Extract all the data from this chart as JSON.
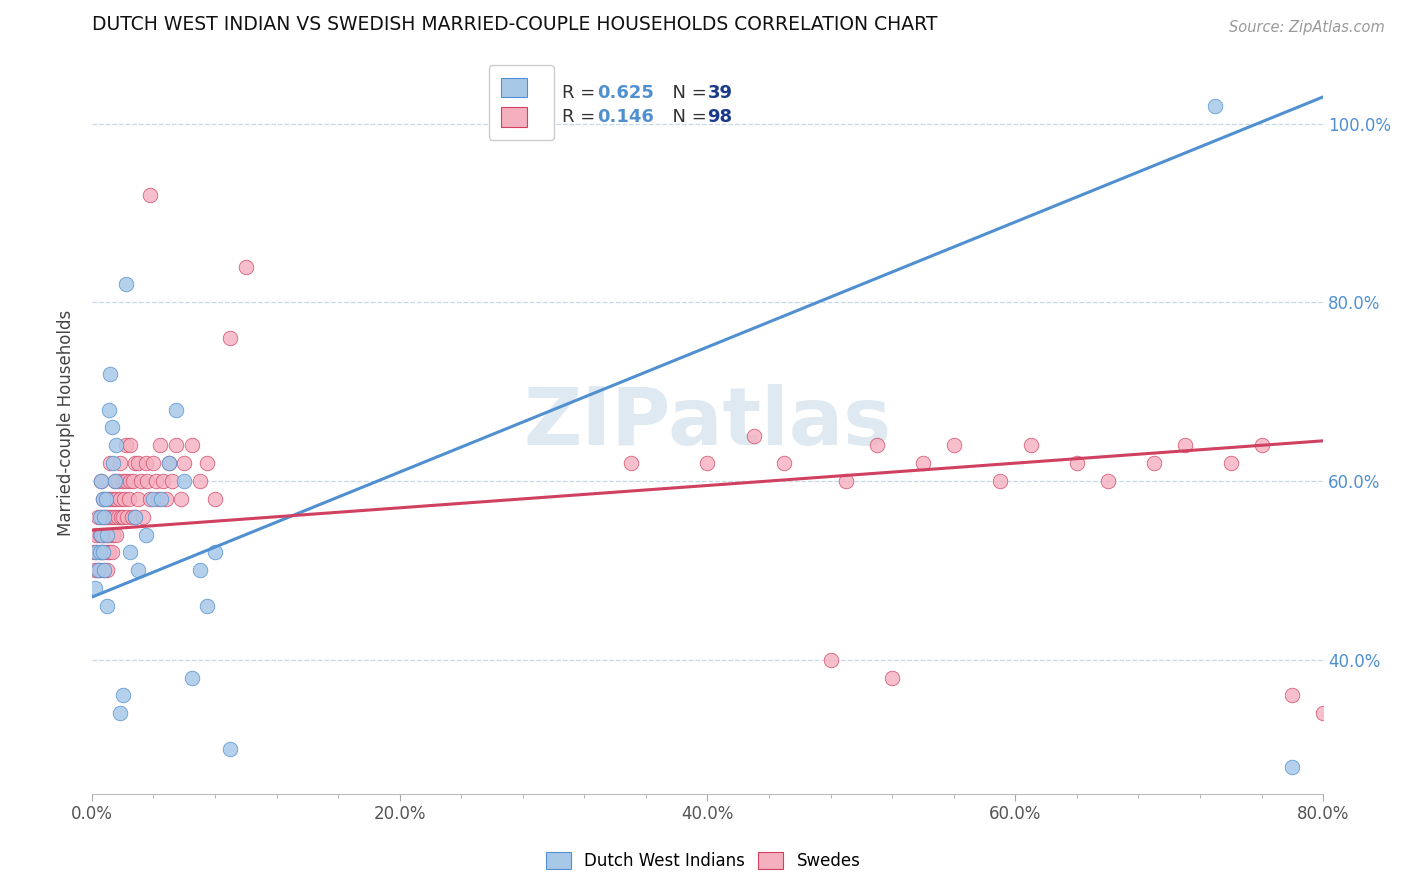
{
  "title": "DUTCH WEST INDIAN VS SWEDISH MARRIED-COUPLE HOUSEHOLDS CORRELATION CHART",
  "source": "Source: ZipAtlas.com",
  "ylabel": "Married-couple Households",
  "xmin": 0.0,
  "xmax": 0.8,
  "ymin": 0.25,
  "ymax": 1.08,
  "xtick_labels": [
    "0.0%",
    "",
    "",
    "",
    "",
    "20.0%",
    "",
    "",
    "",
    "",
    "40.0%",
    "",
    "",
    "",
    "",
    "60.0%",
    "",
    "",
    "",
    "",
    "80.0%"
  ],
  "xtick_vals": [
    0.0,
    0.04,
    0.08,
    0.12,
    0.16,
    0.2,
    0.24,
    0.28,
    0.32,
    0.36,
    0.4,
    0.44,
    0.48,
    0.52,
    0.56,
    0.6,
    0.64,
    0.68,
    0.72,
    0.76,
    0.8
  ],
  "ytick_labels": [
    "40.0%",
    "60.0%",
    "80.0%",
    "100.0%"
  ],
  "ytick_vals": [
    0.4,
    0.6,
    0.8,
    1.0
  ],
  "blue_R": 0.625,
  "blue_N": 39,
  "pink_R": 0.146,
  "pink_N": 98,
  "blue_color": "#a8c8e8",
  "pink_color": "#f5b0c0",
  "blue_line_color": "#5090d0",
  "pink_line_color": "#d04060",
  "watermark": "ZIPatlas",
  "blue_scatter_x": [
    0.002,
    0.003,
    0.004,
    0.005,
    0.005,
    0.006,
    0.006,
    0.007,
    0.007,
    0.008,
    0.008,
    0.009,
    0.01,
    0.01,
    0.011,
    0.012,
    0.013,
    0.014,
    0.015,
    0.016,
    0.018,
    0.02,
    0.022,
    0.025,
    0.028,
    0.03,
    0.035,
    0.04,
    0.045,
    0.05,
    0.055,
    0.06,
    0.065,
    0.07,
    0.075,
    0.08,
    0.09,
    0.73,
    0.78
  ],
  "blue_scatter_y": [
    0.48,
    0.52,
    0.5,
    0.56,
    0.52,
    0.54,
    0.6,
    0.58,
    0.52,
    0.56,
    0.5,
    0.58,
    0.54,
    0.46,
    0.68,
    0.72,
    0.66,
    0.62,
    0.6,
    0.64,
    0.34,
    0.36,
    0.82,
    0.52,
    0.56,
    0.5,
    0.54,
    0.58,
    0.58,
    0.62,
    0.68,
    0.6,
    0.38,
    0.5,
    0.46,
    0.52,
    0.3,
    1.02,
    0.28
  ],
  "pink_scatter_x": [
    0.001,
    0.002,
    0.003,
    0.003,
    0.004,
    0.004,
    0.005,
    0.005,
    0.006,
    0.006,
    0.006,
    0.007,
    0.007,
    0.007,
    0.008,
    0.008,
    0.008,
    0.009,
    0.009,
    0.01,
    0.01,
    0.01,
    0.011,
    0.011,
    0.012,
    0.012,
    0.012,
    0.013,
    0.013,
    0.014,
    0.014,
    0.015,
    0.015,
    0.016,
    0.016,
    0.017,
    0.017,
    0.018,
    0.018,
    0.019,
    0.02,
    0.02,
    0.021,
    0.022,
    0.022,
    0.023,
    0.024,
    0.025,
    0.025,
    0.026,
    0.027,
    0.028,
    0.028,
    0.03,
    0.03,
    0.032,
    0.033,
    0.035,
    0.036,
    0.038,
    0.04,
    0.042,
    0.043,
    0.044,
    0.046,
    0.048,
    0.05,
    0.052,
    0.055,
    0.058,
    0.06,
    0.065,
    0.07,
    0.075,
    0.08,
    0.09,
    0.1,
    0.35,
    0.4,
    0.43,
    0.45,
    0.49,
    0.51,
    0.54,
    0.56,
    0.59,
    0.61,
    0.64,
    0.66,
    0.69,
    0.71,
    0.74,
    0.76,
    0.78,
    0.8,
    0.48,
    0.52,
    0.038
  ],
  "pink_scatter_y": [
    0.52,
    0.5,
    0.52,
    0.54,
    0.56,
    0.5,
    0.54,
    0.5,
    0.52,
    0.56,
    0.6,
    0.52,
    0.54,
    0.58,
    0.54,
    0.5,
    0.56,
    0.52,
    0.56,
    0.54,
    0.5,
    0.58,
    0.56,
    0.52,
    0.54,
    0.58,
    0.62,
    0.56,
    0.52,
    0.58,
    0.54,
    0.6,
    0.56,
    0.58,
    0.54,
    0.6,
    0.56,
    0.62,
    0.58,
    0.56,
    0.6,
    0.56,
    0.58,
    0.6,
    0.64,
    0.56,
    0.58,
    0.6,
    0.64,
    0.56,
    0.6,
    0.62,
    0.56,
    0.62,
    0.58,
    0.6,
    0.56,
    0.62,
    0.6,
    0.58,
    0.62,
    0.6,
    0.58,
    0.64,
    0.6,
    0.58,
    0.62,
    0.6,
    0.64,
    0.58,
    0.62,
    0.64,
    0.6,
    0.62,
    0.58,
    0.76,
    0.84,
    0.62,
    0.62,
    0.65,
    0.62,
    0.6,
    0.64,
    0.62,
    0.64,
    0.6,
    0.64,
    0.62,
    0.6,
    0.62,
    0.64,
    0.62,
    0.64,
    0.36,
    0.34,
    0.4,
    0.38,
    0.92
  ]
}
